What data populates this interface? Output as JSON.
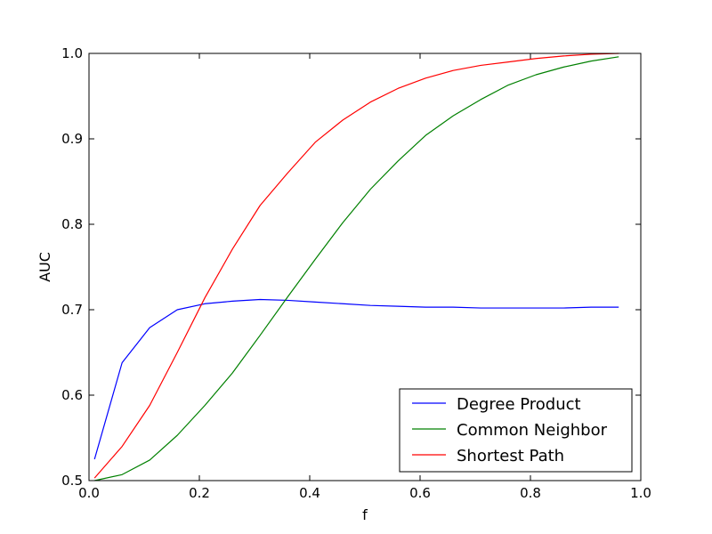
{
  "chart_data": {
    "type": "line",
    "xlabel": "f",
    "ylabel": "AUC",
    "xlim": [
      0.0,
      1.0
    ],
    "ylim": [
      0.5,
      1.0
    ],
    "xticks": [
      "0.0",
      "0.2",
      "0.4",
      "0.6",
      "0.8",
      "1.0"
    ],
    "yticks": [
      "0.5",
      "0.6",
      "0.7",
      "0.8",
      "0.9",
      "1.0"
    ],
    "grid": false,
    "legend_position": "lower-right",
    "series": [
      {
        "name": "Degree Product",
        "color": "#0000ff",
        "x": [
          0.01,
          0.06,
          0.11,
          0.16,
          0.21,
          0.26,
          0.31,
          0.36,
          0.41,
          0.46,
          0.51,
          0.56,
          0.61,
          0.66,
          0.71,
          0.76,
          0.81,
          0.86,
          0.91,
          0.96
        ],
        "y": [
          0.525,
          0.638,
          0.679,
          0.7,
          0.707,
          0.71,
          0.712,
          0.711,
          0.709,
          0.707,
          0.705,
          0.704,
          0.703,
          0.703,
          0.702,
          0.702,
          0.702,
          0.702,
          0.703,
          0.703
        ]
      },
      {
        "name": "Common Neighbor",
        "color": "#008000",
        "x": [
          0.01,
          0.06,
          0.11,
          0.16,
          0.21,
          0.26,
          0.31,
          0.36,
          0.41,
          0.46,
          0.51,
          0.56,
          0.61,
          0.66,
          0.71,
          0.76,
          0.81,
          0.86,
          0.91,
          0.96
        ],
        "y": [
          0.5,
          0.507,
          0.524,
          0.553,
          0.588,
          0.626,
          0.67,
          0.715,
          0.759,
          0.802,
          0.841,
          0.874,
          0.904,
          0.927,
          0.946,
          0.963,
          0.975,
          0.984,
          0.991,
          0.996
        ]
      },
      {
        "name": "Shortest Path",
        "color": "#ff0000",
        "x": [
          0.01,
          0.06,
          0.11,
          0.16,
          0.21,
          0.26,
          0.31,
          0.36,
          0.41,
          0.46,
          0.51,
          0.56,
          0.61,
          0.66,
          0.71,
          0.76,
          0.81,
          0.86,
          0.91,
          0.96
        ],
        "y": [
          0.503,
          0.54,
          0.588,
          0.65,
          0.714,
          0.771,
          0.822,
          0.86,
          0.896,
          0.922,
          0.943,
          0.959,
          0.971,
          0.98,
          0.986,
          0.99,
          0.994,
          0.997,
          0.999,
          1.0
        ]
      }
    ]
  }
}
